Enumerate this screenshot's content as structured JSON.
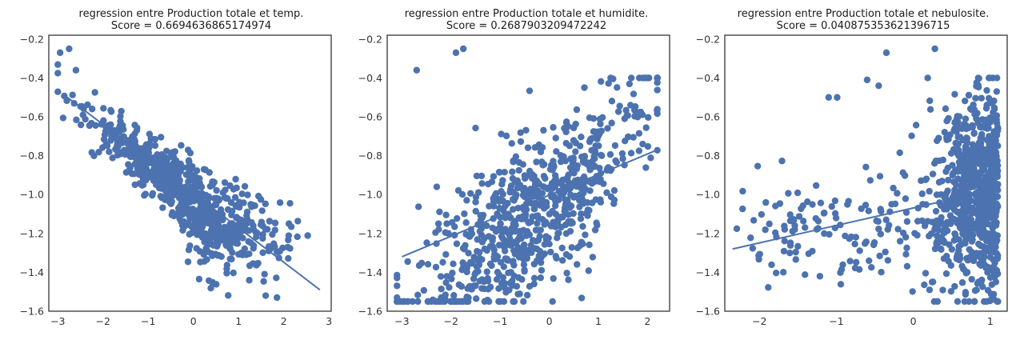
{
  "chart_data": [
    {
      "type": "scatter",
      "title_line1": "regression entre Production totale et temp.",
      "title_line2": "Score = 0.6694636865174974",
      "xlim": [
        -3.2,
        3.05
      ],
      "ylim": [
        -1.6,
        -0.18
      ],
      "xticks": [
        "−3",
        "−2",
        "−1",
        "0",
        "1",
        "2",
        "3"
      ],
      "xtick_values": [
        -3,
        -2,
        -1,
        0,
        1,
        2,
        3
      ],
      "yticks": [
        "−0.2",
        "−0.4",
        "−0.6",
        "−0.8",
        "−1.0",
        "−1.2",
        "−1.4",
        "−1.6"
      ],
      "ytick_values": [
        -0.2,
        -0.4,
        -0.6,
        -0.8,
        -1.0,
        -1.2,
        -1.4,
        -1.6
      ],
      "regression_line": {
        "x": [
          -2.9,
          2.8
        ],
        "y": [
          -0.48,
          -1.49
        ]
      },
      "cloud": {
        "kind": "temp",
        "n": 780,
        "x_range": [
          -3.0,
          2.8
        ],
        "y_range": [
          -1.55,
          -0.24
        ]
      },
      "outliers": [
        {
          "x": -2.95,
          "y": -0.27
        },
        {
          "x": -2.75,
          "y": -0.25
        },
        {
          "x": -2.6,
          "y": -0.36
        },
        {
          "x": 1.85,
          "y": -1.53
        },
        {
          "x": 1.6,
          "y": -1.52
        }
      ]
    },
    {
      "type": "scatter",
      "title_line1": "regression entre Production totale et humidite.",
      "title_line2": "Score = 0.2687903209472242",
      "xlim": [
        -3.3,
        2.45
      ],
      "ylim": [
        -1.6,
        -0.18
      ],
      "xticks": [
        "−3",
        "−2",
        "−1",
        "0",
        "1",
        "2"
      ],
      "xtick_values": [
        -3,
        -2,
        -1,
        0,
        1,
        2
      ],
      "yticks": [
        "−0.2",
        "−0.4",
        "−0.6",
        "−0.8",
        "−1.0",
        "−1.2",
        "−1.4",
        "−1.6"
      ],
      "ytick_values": [
        -0.2,
        -0.4,
        -0.6,
        -0.8,
        -1.0,
        -1.2,
        -1.4,
        -1.6
      ],
      "regression_line": {
        "x": [
          -3.0,
          2.2
        ],
        "y": [
          -1.32,
          -0.77
        ]
      },
      "cloud": {
        "kind": "humid",
        "n": 760,
        "x_range": [
          -3.1,
          2.2
        ],
        "y_range": [
          -1.55,
          -0.4
        ]
      },
      "outliers": [
        {
          "x": -1.9,
          "y": -0.27
        },
        {
          "x": -1.75,
          "y": -0.25
        },
        {
          "x": -2.7,
          "y": -0.36
        },
        {
          "x": -2.2,
          "y": -1.53
        }
      ]
    },
    {
      "type": "scatter",
      "title_line1": "regression entre Production totale et nebulosite.",
      "title_line2": "Score = 0.040875353621396715",
      "xlim": [
        -2.45,
        1.22
      ],
      "ylim": [
        -1.6,
        -0.18
      ],
      "xticks": [
        "−2",
        "−1",
        "0",
        "1"
      ],
      "xtick_values": [
        -2,
        -1,
        0,
        1
      ],
      "yticks": [
        "−0.2",
        "−0.4",
        "−0.6",
        "−0.8",
        "−1.0",
        "−1.2",
        "−1.4",
        "−1.6"
      ],
      "ytick_values": [
        -0.2,
        -0.4,
        -0.6,
        -0.8,
        -1.0,
        -1.2,
        -1.4,
        -1.6
      ],
      "regression_line": {
        "x": [
          -2.35,
          1.1
        ],
        "y": [
          -1.28,
          -0.97
        ]
      },
      "cloud": {
        "kind": "nebul",
        "n": 900,
        "x_range": [
          -2.3,
          1.1
        ],
        "y_range": [
          -1.55,
          -0.4
        ]
      },
      "outliers": [
        {
          "x": 0.28,
          "y": -0.25
        },
        {
          "x": -0.35,
          "y": -0.27
        },
        {
          "x": -0.6,
          "y": -0.41
        },
        {
          "x": -0.45,
          "y": -0.44
        },
        {
          "x": -1.1,
          "y": -0.5
        },
        {
          "x": -0.99,
          "y": -0.5
        },
        {
          "x": 1.05,
          "y": -1.54
        }
      ]
    }
  ]
}
